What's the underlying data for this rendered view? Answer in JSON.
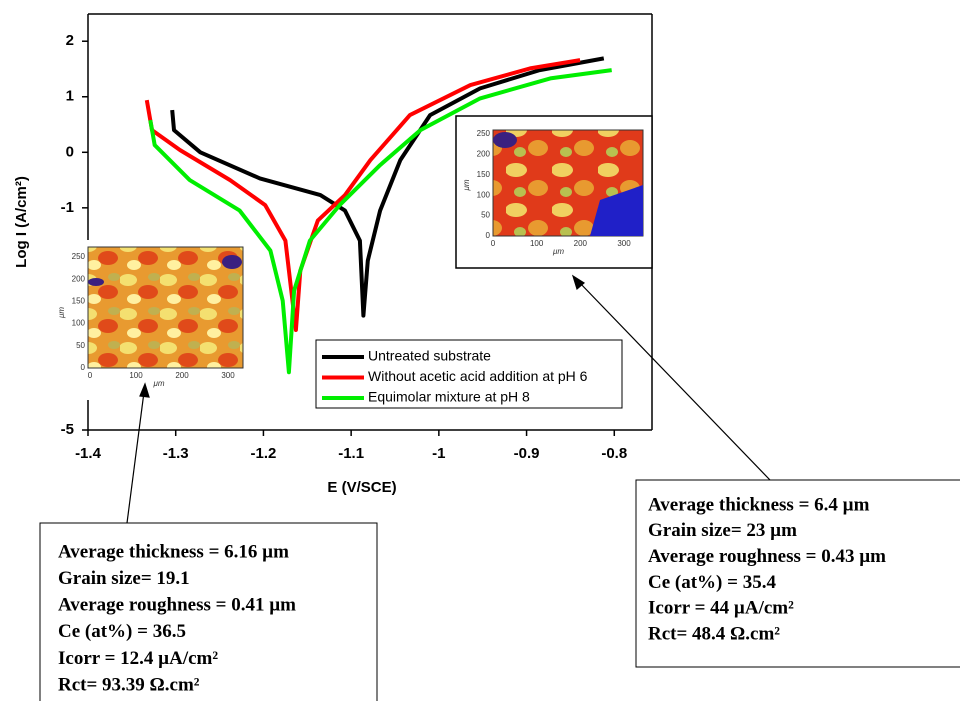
{
  "chart_data": {
    "type": "line",
    "x_label": "E (V/SCE)",
    "y_label": "Log I (A/cm²)",
    "xlim": [
      -1.4,
      -0.757
    ],
    "ylim": [
      -5,
      2.49
    ],
    "xticks": [
      -1.4,
      -1.3,
      -1.2,
      -1.1,
      -1.0,
      -0.9,
      -0.8
    ],
    "yticks": [
      -5,
      -1,
      0,
      1,
      2
    ],
    "series": [
      {
        "name": "Untreated substrate",
        "color": "#000000",
        "x": [
          -1.304,
          -1.302,
          -1.272,
          -1.204,
          -1.135,
          -1.107,
          -1.09,
          -1.086,
          -1.081,
          -1.067,
          -1.044,
          -1.01,
          -0.953,
          -0.885,
          -0.812
        ],
        "values": [
          0.76,
          0.4,
          0,
          -0.47,
          -0.77,
          -1.05,
          -1.59,
          -2.94,
          -1.95,
          -1.05,
          -0.14,
          0.67,
          1.15,
          1.48,
          1.69
        ]
      },
      {
        "name": "Without acetic acid addition at pH 6",
        "color": "#ff0000",
        "x": [
          -1.333,
          -1.327,
          -1.295,
          -1.238,
          -1.198,
          -1.175,
          -1.163,
          -1.158,
          -1.138,
          -1.107,
          -1.078,
          -1.033,
          -0.964,
          -0.896,
          -0.839
        ],
        "values": [
          0.94,
          0.4,
          0.04,
          -0.5,
          -0.95,
          -1.59,
          -3.2,
          -2.13,
          -1.23,
          -0.77,
          -0.14,
          0.67,
          1.21,
          1.51,
          1.66
        ]
      },
      {
        "name": "Equimolar mixture at pH 8",
        "color": "#00ee00",
        "x": [
          -1.329,
          -1.324,
          -1.284,
          -1.227,
          -1.192,
          -1.178,
          -1.171,
          -1.165,
          -1.147,
          -1.113,
          -1.067,
          -1.021,
          -0.953,
          -0.873,
          -0.803
        ],
        "values": [
          0.58,
          0.13,
          -0.5,
          -1.05,
          -1.77,
          -2.67,
          -3.96,
          -2.49,
          -1.59,
          -0.95,
          -0.23,
          0.4,
          0.97,
          1.33,
          1.48
        ]
      }
    ]
  },
  "insets": [
    {
      "yticks": [
        0,
        50,
        100,
        150,
        200,
        250
      ],
      "xticks": [
        0,
        100,
        200,
        300
      ],
      "unit_label": "μm"
    },
    {
      "yticks": [
        0,
        50,
        100,
        150,
        200,
        250
      ],
      "xticks": [
        0,
        100,
        200,
        300
      ],
      "unit_label": "μm"
    }
  ],
  "annotations": [
    {
      "lines": [
        "Average thickness = 6.16 µm",
        "Grain size= 19.1",
        "Average roughness = 0.41 µm",
        "Ce (at%) = 36.5",
        "Icorr = 12.4 µA/cm²",
        "Rct= 93.39 Ω.cm²"
      ]
    },
    {
      "lines": [
        "Average thickness = 6.4 µm",
        "Grain size= 23 µm",
        "Average roughness = 0.43 µm",
        "Ce (at%) = 35.4",
        "Icorr = 44 µA/cm²",
        "Rct= 48.4 Ω.cm²"
      ]
    }
  ]
}
